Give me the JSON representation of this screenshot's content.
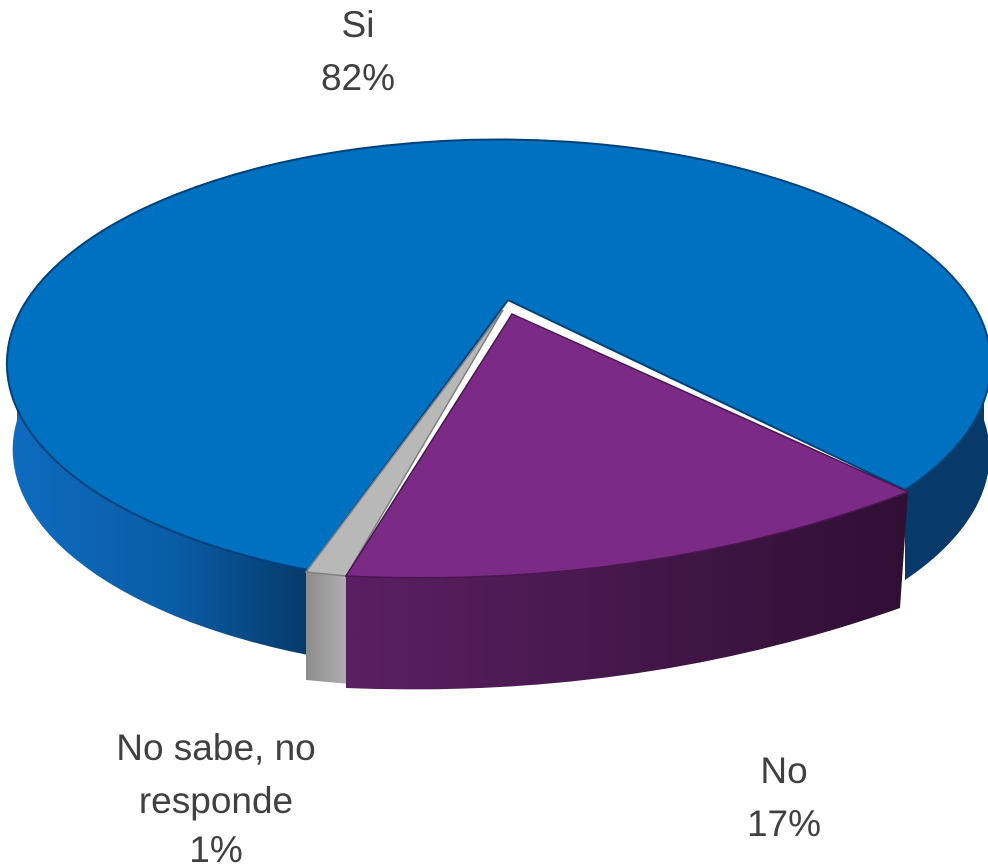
{
  "chart_data": {
    "type": "pie",
    "style": "3d",
    "slices": [
      {
        "label": "Si",
        "value": 82,
        "value_label": "82%",
        "color": "#0070C0"
      },
      {
        "label": "No",
        "value": 17,
        "value_label": "17%",
        "color": "#7B2A85"
      },
      {
        "label_lines": [
          "No sabe, no",
          "responde"
        ],
        "label": "No sabe, no responde",
        "value": 1,
        "value_label": "1%",
        "color": "#A6A6A6"
      }
    ]
  }
}
